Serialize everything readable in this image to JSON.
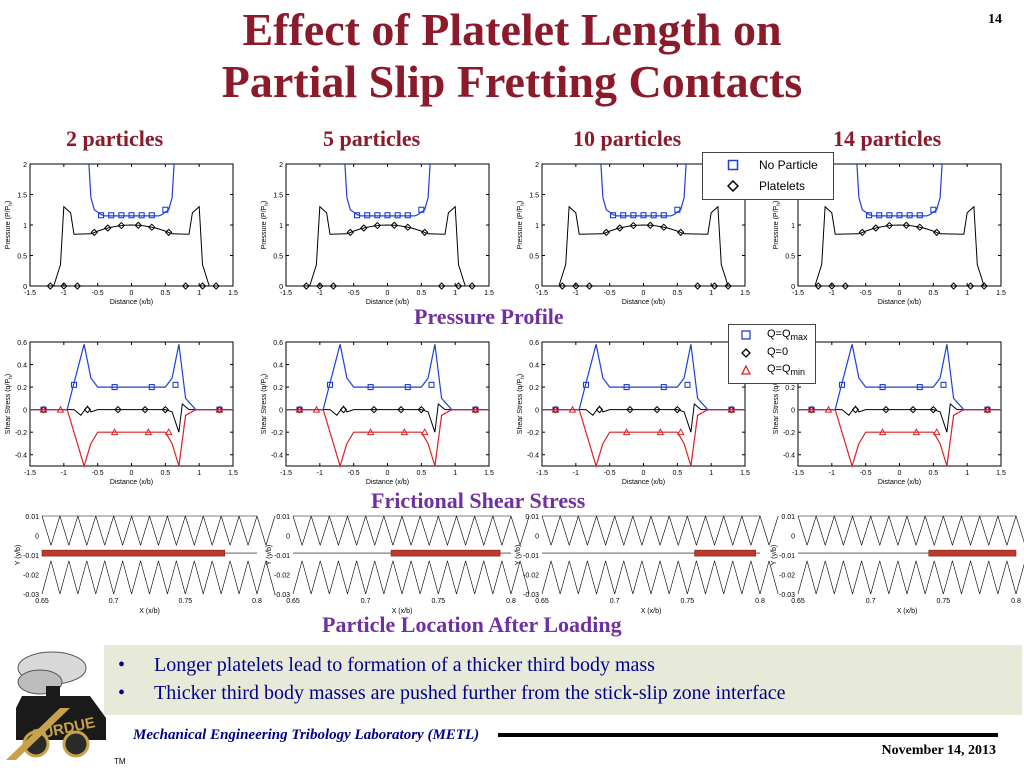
{
  "slide": {
    "title_line1": "Effect of Platelet Length on",
    "title_line2": "Partial Slip Fretting Contacts",
    "number": "14"
  },
  "columns": [
    "2 particles",
    "5 particles",
    "10 particles",
    "14 particles"
  ],
  "sections": {
    "pressure": "Pressure Profile",
    "shear": "Frictional Shear Stress",
    "location": "Particle Location After Loading"
  },
  "legends": {
    "pressure": [
      "No Particle",
      "Platelets"
    ],
    "shear": {
      "q_max": "Q=Q",
      "q_max_sub": "max",
      "q_zero": "Q=0",
      "q_min": "Q=Q",
      "q_min_sub": "min"
    }
  },
  "axes": {
    "pressure": {
      "xlabel": "Distance (x/b)",
      "ylabel": "Pressure (P/P",
      "ylabel_sub": "h",
      "xticks": [
        "-1.5",
        "-1",
        "-0.5",
        "0",
        "0.5",
        "1",
        "1.5"
      ],
      "yticks": [
        "0",
        "0.5",
        "1",
        "1.5",
        "2"
      ]
    },
    "shear": {
      "xlabel": "Distance (x/b)",
      "ylabel": "Shear Stress (q/P",
      "ylabel_sub": "h",
      "xticks": [
        "-1.5",
        "-1",
        "-0.5",
        "0",
        "0.5",
        "1",
        "1.5"
      ],
      "yticks": [
        "-0.4",
        "-0.2",
        "0",
        "0.2",
        "0.4",
        "0.6"
      ]
    },
    "location": {
      "xlabel": "X (x/b)",
      "ylabel": "Y (y/b)",
      "xticks": [
        "0.65",
        "0.7",
        "0.75",
        "0.8"
      ],
      "yticks": [
        "0.01",
        "0",
        "-0.01",
        "-0.02",
        "-0.03"
      ]
    }
  },
  "chart_data": [
    {
      "type": "line",
      "panel": "pressure",
      "column": "2 particles",
      "xlim": [
        -1.5,
        1.5
      ],
      "ylim": [
        0,
        2
      ],
      "series": [
        {
          "name": "No Particle",
          "color": "#1f3fd6"
        },
        {
          "name": "Platelets",
          "color": "#000000"
        }
      ]
    },
    {
      "type": "line",
      "panel": "pressure",
      "column": "5 particles",
      "xlim": [
        -1.5,
        1.5
      ],
      "ylim": [
        0,
        2
      ],
      "series": [
        {
          "name": "No Particle",
          "color": "#1f3fd6"
        },
        {
          "name": "Platelets",
          "color": "#000000"
        }
      ]
    },
    {
      "type": "line",
      "panel": "pressure",
      "column": "10 particles",
      "xlim": [
        -1.5,
        1.5
      ],
      "ylim": [
        0,
        2
      ],
      "series": [
        {
          "name": "No Particle",
          "color": "#1f3fd6"
        },
        {
          "name": "Platelets",
          "color": "#000000"
        }
      ]
    },
    {
      "type": "line",
      "panel": "pressure",
      "column": "14 particles",
      "xlim": [
        -1.5,
        1.5
      ],
      "ylim": [
        0,
        2
      ],
      "series": [
        {
          "name": "No Particle",
          "color": "#1f3fd6"
        },
        {
          "name": "Platelets",
          "color": "#000000"
        }
      ]
    },
    {
      "type": "line",
      "panel": "shear",
      "column": "2 particles",
      "xlim": [
        -1.5,
        1.5
      ],
      "ylim": [
        -0.5,
        0.6
      ],
      "series": [
        {
          "name": "Q=Qmax",
          "color": "#1f3fd6"
        },
        {
          "name": "Q=0",
          "color": "#000000"
        },
        {
          "name": "Q=Qmin",
          "color": "#e02020"
        }
      ]
    },
    {
      "type": "line",
      "panel": "shear",
      "column": "5 particles",
      "xlim": [
        -1.5,
        1.5
      ],
      "ylim": [
        -0.5,
        0.6
      ],
      "series": [
        {
          "name": "Q=Qmax",
          "color": "#1f3fd6"
        },
        {
          "name": "Q=0",
          "color": "#000000"
        },
        {
          "name": "Q=Qmin",
          "color": "#e02020"
        }
      ]
    },
    {
      "type": "line",
      "panel": "shear",
      "column": "10 particles",
      "xlim": [
        -1.5,
        1.5
      ],
      "ylim": [
        -0.5,
        0.6
      ],
      "series": [
        {
          "name": "Q=Qmax",
          "color": "#1f3fd6"
        },
        {
          "name": "Q=0",
          "color": "#000000"
        },
        {
          "name": "Q=Qmin",
          "color": "#e02020"
        }
      ]
    },
    {
      "type": "line",
      "panel": "shear",
      "column": "14 particles",
      "xlim": [
        -1.5,
        1.5
      ],
      "ylim": [
        -0.5,
        0.6
      ],
      "series": [
        {
          "name": "Q=Qmax",
          "color": "#1f3fd6"
        },
        {
          "name": "Q=0",
          "color": "#000000"
        },
        {
          "name": "Q=Qmin",
          "color": "#e02020"
        }
      ]
    }
  ],
  "bullets": [
    "Longer platelets lead to formation of a thicker third body mass",
    "Thicker third body masses are pushed further from the stick-slip zone interface"
  ],
  "footer": {
    "lab": "Mechanical Engineering Tribology Laboratory (METL)",
    "date": "November 14, 2013",
    "logo_text": "PURDUE"
  },
  "colors": {
    "title": "#8b1a2b",
    "section": "#7030a0",
    "bullet_text": "#00008b",
    "bullet_box": "#e7ead9",
    "blue_series": "#1f3fd6",
    "red_series": "#e02020"
  }
}
